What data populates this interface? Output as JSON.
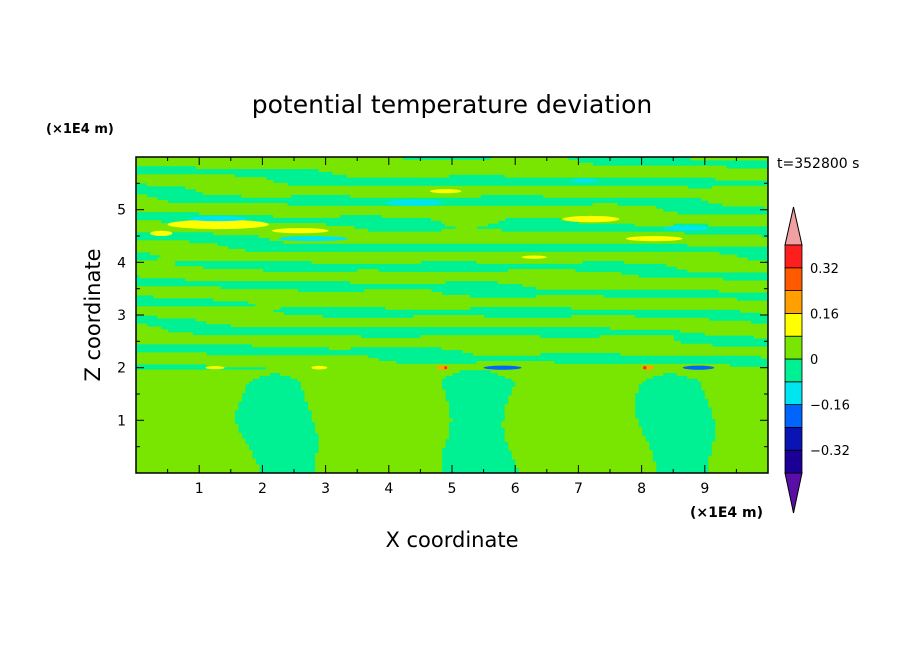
{
  "chart_data": {
    "type": "heatmap",
    "title": "potential temperature deviation",
    "time_label": "t=352800 s",
    "xlabel": "X coordinate",
    "ylabel": "Z coordinate",
    "x_unit": "(×1E4 m)",
    "y_unit": "(×1E4 m)",
    "xlim": [
      0,
      10
    ],
    "ylim": [
      0,
      6
    ],
    "x_ticks": [
      1,
      2,
      3,
      4,
      5,
      6,
      7,
      8,
      9
    ],
    "y_ticks": [
      1,
      2,
      3,
      4,
      5
    ],
    "colorbar": {
      "levels": [
        -0.48,
        -0.4,
        -0.32,
        -0.24,
        -0.16,
        -0.08,
        0,
        0.08,
        0.16,
        0.24,
        0.32,
        0.4
      ],
      "colors": [
        "#5a0ea8",
        "#1a0096",
        "#0a14b4",
        "#0064ff",
        "#00e6f0",
        "#00f094",
        "#78e600",
        "#ffff00",
        "#ffa000",
        "#ff5a00",
        "#ff1e1e",
        "#f0a0a0"
      ],
      "labels": [
        "0.32",
        "0.16",
        "0",
        "-0.16",
        "-0.32"
      ],
      "label_values": [
        0.32,
        0.16,
        0,
        -0.16,
        -0.32
      ],
      "extend": "both"
    },
    "features": {
      "lower_layer": "alternating green (0 to 0.08) and teal (-0.08 to 0) columns below z=2",
      "upper_layer": "wavy horizontal bands of green and teal above z=2",
      "extremes": "small yellow and cyan patches near z=4.5-5.5, orange spots near z=2"
    }
  }
}
